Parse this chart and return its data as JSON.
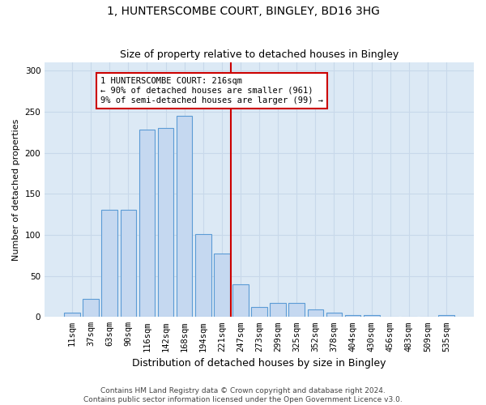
{
  "title": "1, HUNTERSCOMBE COURT, BINGLEY, BD16 3HG",
  "subtitle": "Size of property relative to detached houses in Bingley",
  "xlabel": "Distribution of detached houses by size in Bingley",
  "ylabel": "Number of detached properties",
  "categories": [
    "11sqm",
    "37sqm",
    "63sqm",
    "90sqm",
    "116sqm",
    "142sqm",
    "168sqm",
    "194sqm",
    "221sqm",
    "247sqm",
    "273sqm",
    "299sqm",
    "325sqm",
    "352sqm",
    "378sqm",
    "404sqm",
    "430sqm",
    "456sqm",
    "483sqm",
    "509sqm",
    "535sqm"
  ],
  "values": [
    5,
    22,
    131,
    131,
    228,
    230,
    245,
    101,
    77,
    40,
    12,
    17,
    17,
    9,
    5,
    2,
    2,
    0,
    0,
    0,
    2
  ],
  "bar_color": "#c5d8f0",
  "bar_edge_color": "#5b9bd5",
  "vline_position": 8.5,
  "vline_color": "#cc0000",
  "annotation_text": "1 HUNTERSCOMBE COURT: 216sqm\n← 90% of detached houses are smaller (961)\n9% of semi-detached houses are larger (99) →",
  "annotation_box_color": "#ffffff",
  "annotation_box_edge": "#cc0000",
  "grid_color": "#c8d8ea",
  "plot_bg_color": "#dce9f5",
  "footer_line1": "Contains HM Land Registry data © Crown copyright and database right 2024.",
  "footer_line2": "Contains public sector information licensed under the Open Government Licence v3.0.",
  "ylim": [
    0,
    310
  ],
  "yticks": [
    0,
    50,
    100,
    150,
    200,
    250,
    300
  ],
  "title_fontsize": 10,
  "subtitle_fontsize": 9,
  "ylabel_fontsize": 8,
  "xlabel_fontsize": 9,
  "tick_fontsize": 7.5,
  "annotation_fontsize": 7.5,
  "footer_fontsize": 6.5
}
